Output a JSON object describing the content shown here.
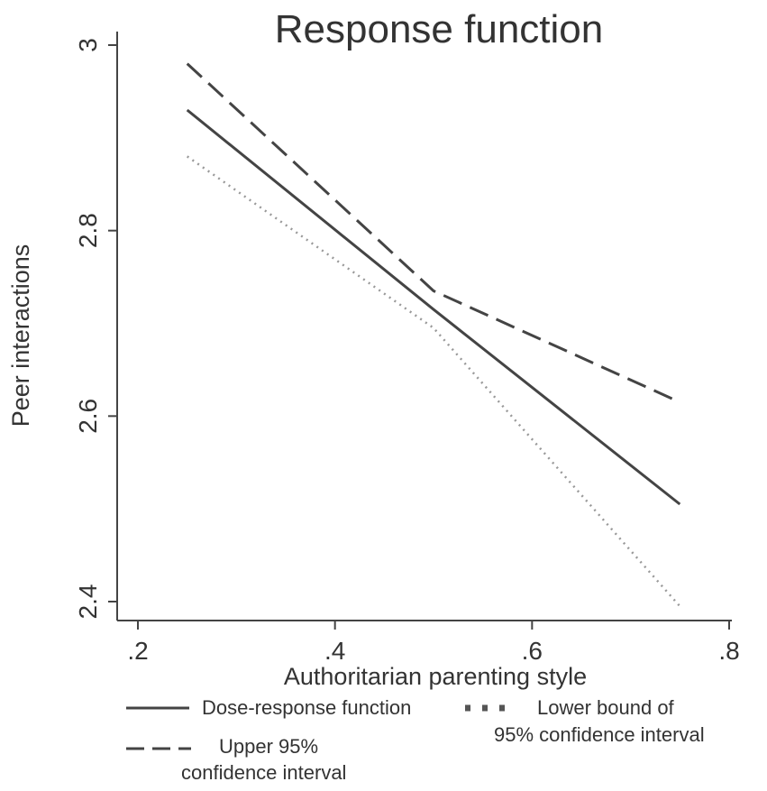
{
  "chart_data": {
    "type": "line",
    "title": "Response function",
    "xlabel": "Authoritarian parenting style",
    "ylabel": "Peer interactions",
    "xlim": [
      0.2,
      0.8
    ],
    "ylim": [
      2.4,
      3.0
    ],
    "xticks": [
      {
        "value": 0.2,
        "label": ".2"
      },
      {
        "value": 0.4,
        "label": ".4"
      },
      {
        "value": 0.6,
        "label": ".6"
      },
      {
        "value": 0.8,
        "label": ".8"
      }
    ],
    "yticks": [
      {
        "value": 2.4,
        "label": "2.4"
      },
      {
        "value": 2.6,
        "label": "2.6"
      },
      {
        "value": 2.8,
        "label": "2.8"
      },
      {
        "value": 3.0,
        "label": "3"
      }
    ],
    "grid": false,
    "legend_position": "bottom",
    "series": [
      {
        "key": "dose",
        "name": "Dose-response function",
        "style": "solid",
        "color": "#444444",
        "points": [
          [
            0.25,
            2.93
          ],
          [
            0.5,
            2.715
          ],
          [
            0.75,
            2.505
          ]
        ]
      },
      {
        "key": "upper",
        "name": "Upper 95% confidence interval",
        "style": "dashed",
        "color": "#444444",
        "points": [
          [
            0.25,
            2.98
          ],
          [
            0.5,
            2.735
          ],
          [
            0.75,
            2.615
          ]
        ]
      },
      {
        "key": "lower",
        "name": "Lower bound of 95% confidence interval",
        "style": "dotted",
        "color": "#999999",
        "points": [
          [
            0.25,
            2.88
          ],
          [
            0.5,
            2.695
          ],
          [
            0.75,
            2.395
          ]
        ]
      }
    ],
    "legend": {
      "dose_label": "Dose-response function",
      "lower_line1": "Lower bound of",
      "lower_line2": "95% confidence interval",
      "upper_line1": "Upper 95%",
      "upper_line2": "confidence interval"
    }
  }
}
